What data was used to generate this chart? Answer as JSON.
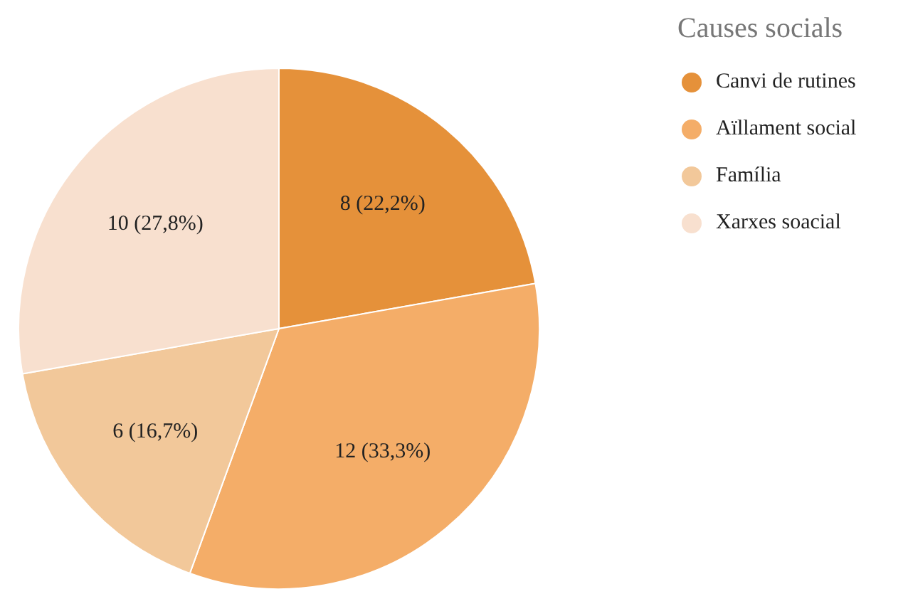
{
  "chart_data": {
    "type": "pie",
    "legend_title": "Causes socials",
    "legend": "top right",
    "categories": [
      "Canvi de rutines",
      "Aïllament social",
      "Família",
      "Xarxes soacial"
    ],
    "values": [
      8,
      12,
      6,
      10
    ],
    "colors": [
      "#e5913a",
      "#f4ad68",
      "#f2c89a",
      "#f8e0cf"
    ],
    "value_labels": [
      "8 (22,2%)",
      "12 (33,3%)",
      "6 (16,7%)",
      "10 (27,8%)"
    ]
  }
}
